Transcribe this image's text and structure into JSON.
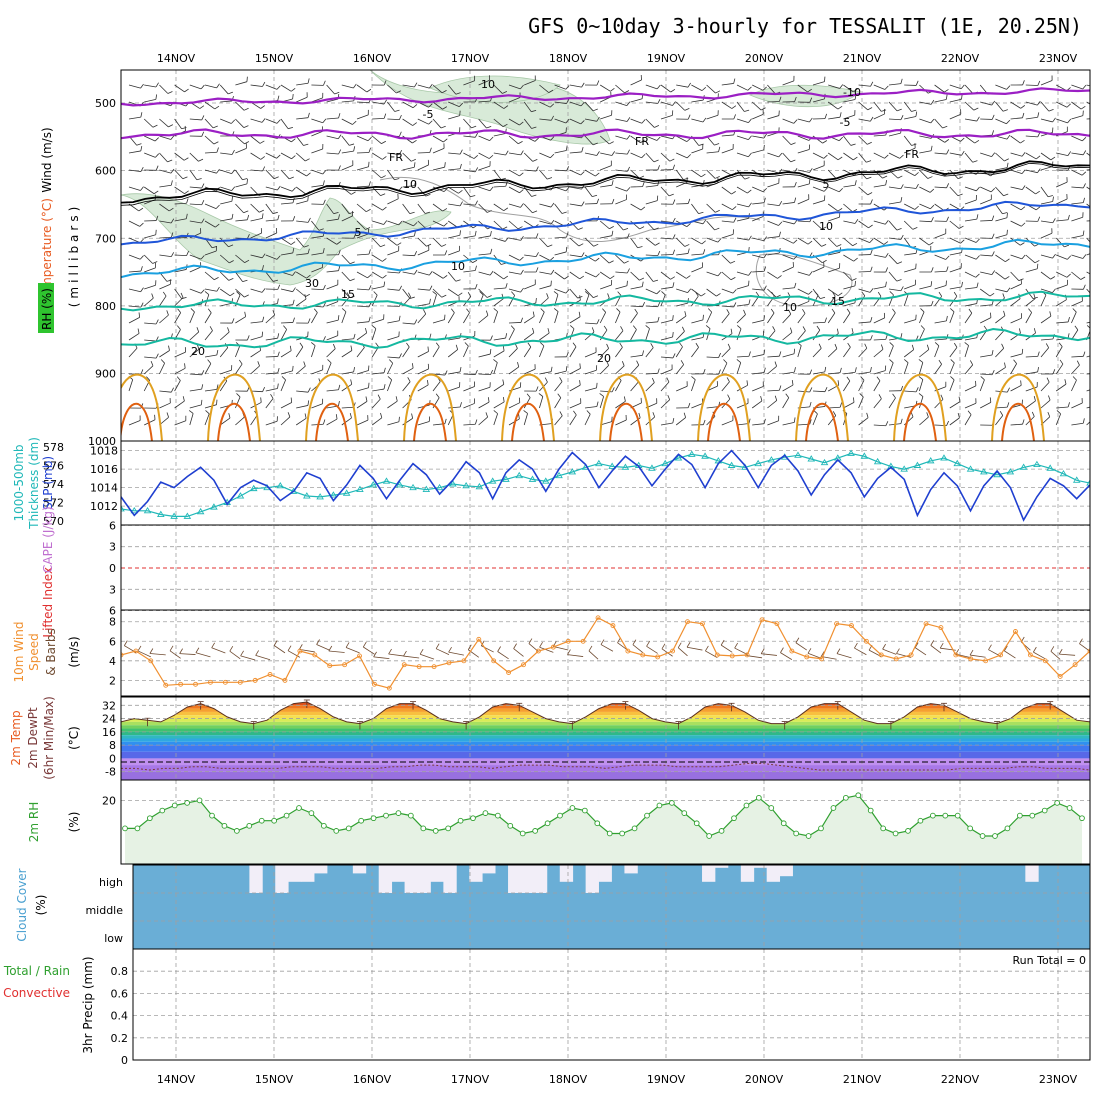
{
  "title": "GFS 0~10day 3-hourly for TESSALIT (1E, 20.25N)",
  "date_labels": [
    "14NOV",
    "15NOV",
    "16NOV",
    "17NOV",
    "18NOV",
    "19NOV",
    "20NOV",
    "21NOV",
    "22NOV",
    "23NOV"
  ],
  "colors": {
    "temp_cold": "#9b1fc4",
    "freezing": "#000000",
    "temp_mid": "#1f55d8",
    "temp_warm": "#1aa0e0",
    "temp_hot": "#14b8a0",
    "rh_fill": "#d8ead8",
    "warm_contour1": "#e0a020",
    "warm_contour2": "#e06010",
    "slp": "#1f3fd0",
    "thickness": "#20b8b8",
    "wind_speed": "#f09030",
    "barb": "#6e4a30",
    "rh2m": "#30a030",
    "cloud": "#6aaed6",
    "cloud_gap": "#f2eef8"
  },
  "panel_labels": {
    "upper": {
      "wind": "Wind (m/s)",
      "temp": "Temperature (°C)",
      "rh": "RH (%)",
      "mb": "(millibars)"
    },
    "slp": {
      "thick1": "1000-500mb",
      "thick2": "Thickness (dm)",
      "slp": "SLP (mb)"
    },
    "li": {
      "li": "Lifted Index",
      "cape": "CAPE (J/kg)"
    },
    "wind10": {
      "a": "10m Wind",
      "b": "Speed",
      "c": "& Barbs",
      "unit": "(m/s)"
    },
    "temp2m": {
      "a": "2m Temp",
      "b": "2m DewPt",
      "c": "(6hr Min/Max)",
      "unit": "(°C)"
    },
    "rh2m": {
      "a": "2m RH",
      "unit": "(%)"
    },
    "cloud": {
      "a": "Cloud Cover",
      "unit": "(%)"
    },
    "precip": {
      "a": "Total / Rain",
      "b": "Convective",
      "c": "3hr Precip (mm)"
    }
  },
  "run_total": "Run Total = 0",
  "contour_labels": {
    "cold": [
      "10",
      "-10",
      "-5",
      "-5"
    ],
    "freeze": [
      "FR",
      "FR",
      "FR"
    ],
    "mid": [
      "5",
      "5",
      "10",
      "10"
    ],
    "warm": [
      "15",
      "15",
      "20",
      "20"
    ],
    "rh": [
      "10",
      "30",
      "10"
    ]
  },
  "chart_data": [
    {
      "type": "line",
      "panel": "upper-air cross section",
      "ylabel": "(millibars)",
      "yticks": [
        500,
        600,
        700,
        800,
        900,
        1000
      ],
      "contours": [
        {
          "name": "-10",
          "y_mb_start": 500,
          "y_mb_end": 482
        },
        {
          "name": "-5",
          "y_mb_start": 546,
          "y_mb_end": 546
        },
        {
          "name": "FR",
          "y_mb_start": 640,
          "y_mb_end": 592
        },
        {
          "name": "5",
          "y_mb_start": 707,
          "y_mb_end": 648
        },
        {
          "name": "10",
          "y_mb_start": 752,
          "y_mb_end": 707
        },
        {
          "name": "15",
          "y_mb_start": 800,
          "y_mb_end": 786
        },
        {
          "name": "20",
          "y_mb_start": 857,
          "y_mb_end": 842
        }
      ]
    },
    {
      "type": "line",
      "panel": "SLP and thickness",
      "ylabel_left": "1000-500mb Thickness (dm)",
      "ylabel_right": "SLP (mb)",
      "yticks_thickness": [
        570,
        572,
        574,
        576,
        578
      ],
      "yticks_slp": [
        1012,
        1014,
        1016,
        1018
      ],
      "series": [
        {
          "name": "SLP (mb)",
          "values": [
            1013.0,
            1011.0,
            1012.5,
            1014.6,
            1014.0,
            1015.2,
            1016.2,
            1014.8,
            1012.2,
            1014.0,
            1014.8,
            1014.2,
            1012.6,
            1013.6,
            1015.6,
            1015.0,
            1012.6,
            1014.3,
            1016.4,
            1015.0,
            1012.8,
            1014.8,
            1016.6,
            1015.4,
            1013.3,
            1014.8,
            1016.8,
            1015.6,
            1012.8,
            1015.6,
            1017.0,
            1016.0,
            1013.6,
            1016.0,
            1017.8,
            1016.5,
            1014.0,
            1015.8,
            1017.4,
            1016.3,
            1014.2,
            1016.0,
            1017.6,
            1016.5,
            1014.0,
            1016.6,
            1018.0,
            1016.4,
            1014.0,
            1016.4,
            1017.5,
            1015.8,
            1013.2,
            1015.4,
            1017.0,
            1015.6,
            1013.0,
            1015.0,
            1016.2,
            1014.9,
            1011.0,
            1013.8,
            1015.6,
            1014.2,
            1011.5,
            1014.2,
            1015.8,
            1014.0,
            1010.5,
            1013.0,
            1015.0,
            1014.2,
            1012.8,
            1014.3
          ]
        },
        {
          "name": "1000-500mb Thickness (dm)",
          "values": [
            571.3,
            571.1,
            571.1,
            570.7,
            570.5,
            570.5,
            571.0,
            571.5,
            572.0,
            572.7,
            573.5,
            573.6,
            573.8,
            573.2,
            572.7,
            572.6,
            572.8,
            573.0,
            573.4,
            573.9,
            574.3,
            573.9,
            573.6,
            573.4,
            573.6,
            574.0,
            573.8,
            573.7,
            574.3,
            574.5,
            574.9,
            574.5,
            574.3,
            574.9,
            575.3,
            575.8,
            576.2,
            575.9,
            575.8,
            576.0,
            575.7,
            576.2,
            576.8,
            577.2,
            577.0,
            576.5,
            576.0,
            575.8,
            576.2,
            576.6,
            576.9,
            577.1,
            576.7,
            576.3,
            576.8,
            577.3,
            577.0,
            576.4,
            575.9,
            575.6,
            576.0,
            576.5,
            576.8,
            576.2,
            575.6,
            575.3,
            575.0,
            575.3,
            575.8,
            576.1,
            575.7,
            575.1,
            574.4,
            574.1
          ]
        }
      ]
    },
    {
      "type": "line",
      "panel": "Lifted Index / CAPE",
      "ylabel": "Lifted Index / CAPE (J/kg)",
      "yticks": [
        -6,
        -3,
        0,
        3,
        6
      ],
      "ytick_labels": [
        "6",
        "3",
        "0",
        "3",
        "6"
      ],
      "series": [
        {
          "name": "Lifted Index",
          "values": []
        }
      ]
    },
    {
      "type": "line",
      "panel": "10m wind",
      "ylabel": "(m/s)",
      "yticks": [
        2,
        4,
        6,
        8
      ],
      "ylim": [
        0.4,
        9.2
      ],
      "series": [
        {
          "name": "Speed",
          "values": [
            4.6,
            5.0,
            4.0,
            1.5,
            1.6,
            1.6,
            1.8,
            1.8,
            1.8,
            2.0,
            2.6,
            2.0,
            5.0,
            4.6,
            3.5,
            3.6,
            4.5,
            1.6,
            1.2,
            3.6,
            3.4,
            3.4,
            3.8,
            4.0,
            6.2,
            4.0,
            2.8,
            3.6,
            5.0,
            5.4,
            6.0,
            6.0,
            8.4,
            7.6,
            5.0,
            4.6,
            4.4,
            5.0,
            8.0,
            7.8,
            4.6,
            4.5,
            4.6,
            8.2,
            7.8,
            5.0,
            4.4,
            4.2,
            7.8,
            7.6,
            6.0,
            4.6,
            4.2,
            4.6,
            7.8,
            7.4,
            4.6,
            4.2,
            4.0,
            4.6,
            7.0,
            4.6,
            4.0,
            2.4,
            3.6,
            5.0
          ]
        }
      ]
    },
    {
      "type": "area",
      "panel": "2m temperature",
      "ylabel": "(°C)",
      "yticks": [
        -8,
        0,
        8,
        16,
        24,
        32
      ],
      "ylim": [
        -13,
        37
      ],
      "series": [
        {
          "name": "2m Temp",
          "values": [
            22,
            24,
            23,
            22,
            26,
            31,
            33,
            30,
            25,
            22,
            21,
            23,
            29,
            33,
            34,
            30,
            25,
            22,
            21,
            24,
            30,
            33,
            33,
            29,
            24,
            22,
            21,
            25,
            31,
            33,
            32,
            28,
            24,
            22,
            21,
            25,
            30,
            33,
            33,
            29,
            24,
            22,
            21,
            25,
            31,
            33,
            32,
            28,
            23,
            21,
            21,
            25,
            31,
            33,
            33,
            28,
            23,
            21,
            21,
            25,
            31,
            33,
            32,
            28,
            24,
            22,
            21,
            24,
            30,
            33,
            33,
            28,
            23,
            22
          ]
        },
        {
          "name": "2m DewPt",
          "values": [
            -6,
            -6,
            -7,
            -6,
            -6,
            -5,
            -5,
            -6,
            -6,
            -6,
            -6,
            -6,
            -5,
            -5,
            -5,
            -6,
            -6,
            -6,
            -6,
            -5,
            -5,
            -4,
            -4,
            -5,
            -5,
            -5,
            -6,
            -5,
            -4,
            -4,
            -4,
            -5,
            -5,
            -5,
            -6,
            -5,
            -4,
            -4,
            -4,
            -5,
            -5,
            -5,
            -5,
            -4,
            -3,
            -3,
            -4,
            -5,
            -6,
            -7,
            -7,
            -7,
            -7,
            -7,
            -7,
            -7,
            -7,
            -7,
            -7,
            -6,
            -6,
            -6,
            -6,
            -5,
            -5,
            -6,
            -6,
            -6,
            -7
          ]
        }
      ]
    },
    {
      "type": "line",
      "panel": "2m RH",
      "ylabel": "(%)",
      "yticks": [
        20
      ],
      "ylim": [
        -5,
        28
      ],
      "series": [
        {
          "name": "2m RH",
          "values": [
            9,
            9,
            13,
            16,
            18,
            19,
            20,
            14,
            10,
            8,
            10,
            12,
            12,
            14,
            17,
            15,
            10,
            8,
            9,
            12,
            13,
            14,
            15,
            14,
            9,
            8,
            9,
            12,
            13,
            15,
            14,
            10,
            7,
            8,
            11,
            14,
            17,
            16,
            11,
            7,
            7,
            9,
            14,
            18,
            19,
            15,
            11,
            6,
            8,
            13,
            18,
            21,
            17,
            11,
            7,
            6,
            9,
            17,
            21,
            22,
            16,
            9,
            7,
            8,
            12,
            14,
            14,
            14,
            9,
            6,
            6,
            9,
            14,
            14,
            16,
            19,
            17,
            13
          ]
        }
      ]
    },
    {
      "type": "bar",
      "panel": "Cloud Cover",
      "ylabel": "(%)",
      "ytick_labels": [
        "high",
        "middle",
        "low"
      ],
      "series": [
        {
          "name": "high cloud gap",
          "values": [
            0,
            0,
            0,
            0,
            0,
            0,
            0,
            0,
            0,
            1,
            0,
            1,
            0.6,
            0.6,
            0.3,
            0,
            0,
            0.3,
            0,
            1,
            0.6,
            1,
            1,
            0.6,
            1,
            0,
            0.6,
            0.3,
            0,
            1,
            1,
            1,
            0,
            0.6,
            0,
            1,
            0.6,
            0,
            0.3,
            0,
            0,
            0,
            0,
            0,
            0.6,
            0.1,
            0,
            0.6,
            0.1,
            0.6,
            0.4,
            0,
            0,
            0,
            0,
            0,
            0,
            0,
            0,
            0,
            0,
            0,
            0,
            0,
            0,
            0,
            0,
            0,
            0,
            0.6,
            0,
            0,
            0,
            0
          ]
        }
      ]
    },
    {
      "type": "bar",
      "panel": "3hr Precip",
      "ylabel": "3hr Precip (mm)",
      "yticks": [
        0,
        0.2,
        0.4,
        0.6,
        0.8
      ],
      "ytick_labels": [
        "0",
        "0.2",
        "0.4",
        "0.6",
        "0.8"
      ],
      "ylim": [
        0,
        1.0
      ],
      "series": [
        {
          "name": "Total / Rain",
          "values": []
        },
        {
          "name": "Convective",
          "values": []
        }
      ]
    }
  ]
}
